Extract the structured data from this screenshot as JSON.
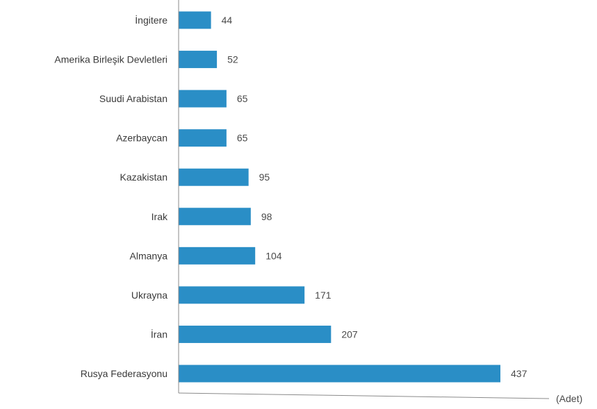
{
  "chart_data": {
    "type": "bar",
    "orientation": "horizontal",
    "categories": [
      "İngitere",
      "Amerika Birleşik Devletleri",
      "Suudi Arabistan",
      "Azerbaycan",
      "Kazakistan",
      "Irak",
      "Almanya",
      "Ukrayna",
      "İran",
      "Rusya Federasyonu"
    ],
    "values": [
      44,
      52,
      65,
      65,
      95,
      98,
      104,
      171,
      207,
      437
    ],
    "xlabel": "(Adet)",
    "ylabel": "",
    "title": "",
    "xlim": [
      0,
      480
    ],
    "grid": false,
    "bar_color": "#2a8ec6",
    "axis_color": "#8a8a8a"
  }
}
